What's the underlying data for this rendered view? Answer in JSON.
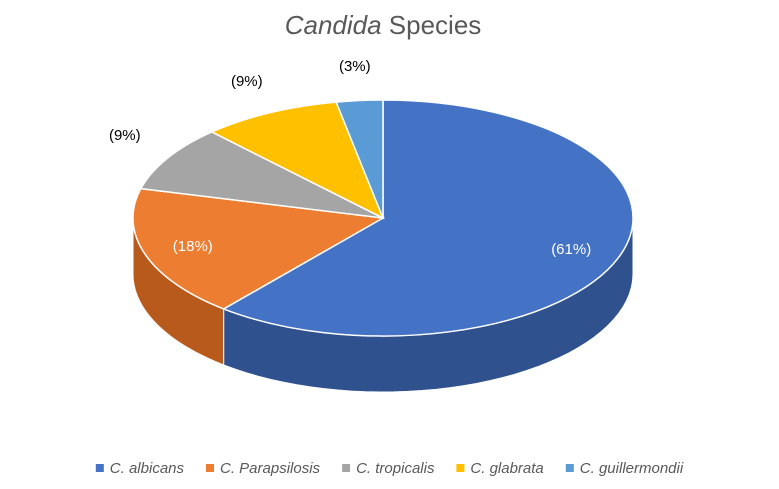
{
  "chart_data": {
    "type": "pie",
    "title_italic": "Candida",
    "title_rest": " Species",
    "slices": [
      {
        "name": "C. albicans",
        "value": 61,
        "label": "(61%)",
        "color": "#4472C4",
        "side_color": "#2F528F",
        "label_color": "#ffffff"
      },
      {
        "name": "C. Parapsilosis",
        "value": 18,
        "label": "(18%)",
        "color": "#ED7D31",
        "side_color": "#B85A1C",
        "label_color": "#ffffff"
      },
      {
        "name": "C. tropicalis",
        "value": 9,
        "label": "(9%)",
        "color": "#A5A5A5",
        "side_color": "#7B7B7B",
        "label_color": "#000000"
      },
      {
        "name": "C. glabrata",
        "value": 9,
        "label": "(9%)",
        "color": "#FFC000",
        "side_color": "#C49300",
        "label_color": "#000000"
      },
      {
        "name": "C. guillermondii",
        "value": 3,
        "label": "(3%)",
        "color": "#5B9BD5",
        "side_color": "#3F75A8",
        "label_color": "#000000"
      }
    ],
    "legend_position": "bottom"
  }
}
